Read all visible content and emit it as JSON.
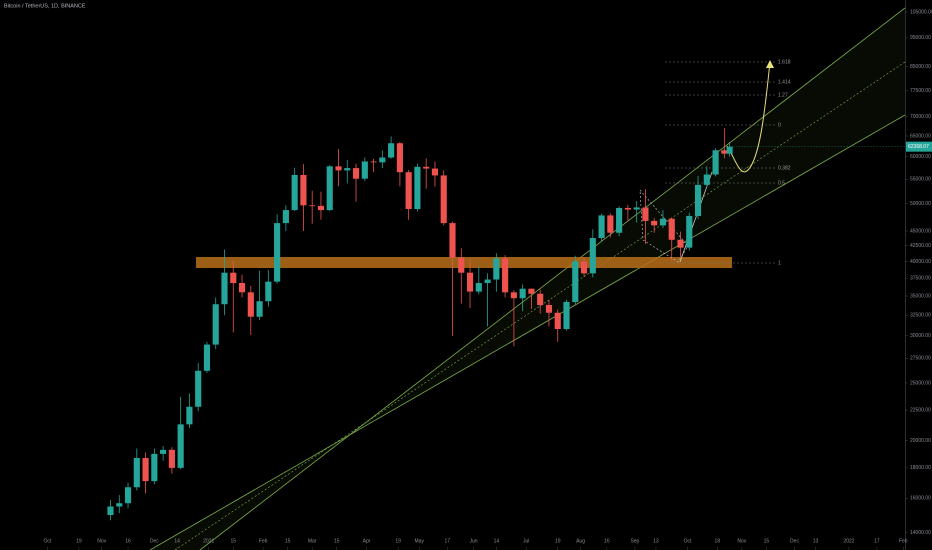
{
  "chart_data": {
    "type": "candlestick",
    "title": "Bitcoin / TetherUS, 1D, BINANCE",
    "log_scale": true,
    "up_color": "#26a69a",
    "down_color": "#ef5350",
    "xlim": [
      -27,
      489
    ],
    "ylim": [
      13100,
      110000
    ],
    "xticks": [
      {
        "value": 0,
        "label": "Oct"
      },
      {
        "value": 18,
        "label": "19"
      },
      {
        "value": 31,
        "label": "Nov"
      },
      {
        "value": 46,
        "label": "16"
      },
      {
        "value": 61,
        "label": "Dec"
      },
      {
        "value": 74,
        "label": "14"
      },
      {
        "value": 92,
        "label": "2021"
      },
      {
        "value": 106,
        "label": "15"
      },
      {
        "value": 123,
        "label": "Feb"
      },
      {
        "value": 137,
        "label": "15"
      },
      {
        "value": 151,
        "label": "Mar"
      },
      {
        "value": 165,
        "label": "15"
      },
      {
        "value": 182,
        "label": "Apr"
      },
      {
        "value": 200,
        "label": "19"
      },
      {
        "value": 212,
        "label": "May"
      },
      {
        "value": 228,
        "label": "17"
      },
      {
        "value": 243,
        "label": "Jun"
      },
      {
        "value": 256,
        "label": "14"
      },
      {
        "value": 273,
        "label": "Jul"
      },
      {
        "value": 291,
        "label": "19"
      },
      {
        "value": 304,
        "label": "Aug"
      },
      {
        "value": 319,
        "label": "16"
      },
      {
        "value": 335,
        "label": "Sep"
      },
      {
        "value": 347,
        "label": "13"
      },
      {
        "value": 365,
        "label": "Oct"
      },
      {
        "value": 382,
        "label": "18"
      },
      {
        "value": 396,
        "label": "Nov"
      },
      {
        "value": 410,
        "label": "15"
      },
      {
        "value": 426,
        "label": "Dec"
      },
      {
        "value": 438,
        "label": "13"
      },
      {
        "value": 457,
        "label": "2022"
      },
      {
        "value": 473,
        "label": "17"
      },
      {
        "value": 488,
        "label": "Feb"
      }
    ],
    "yticks": [
      {
        "value": 14000,
        "label": "14000.00"
      },
      {
        "value": 16000,
        "label": "16000.00"
      },
      {
        "value": 18000,
        "label": "18000.00"
      },
      {
        "value": 20000,
        "label": "20000.00"
      },
      {
        "value": 22500,
        "label": "22500.00"
      },
      {
        "value": 25000,
        "label": "25000.00"
      },
      {
        "value": 27500,
        "label": "27500.00"
      },
      {
        "value": 30000,
        "label": "30000.00"
      },
      {
        "value": 32500,
        "label": "32500.00"
      },
      {
        "value": 35000,
        "label": "35000.00"
      },
      {
        "value": 37500,
        "label": "37500.00"
      },
      {
        "value": 40000,
        "label": "40000.00"
      },
      {
        "value": 42500,
        "label": "42500.00"
      },
      {
        "value": 45000,
        "label": "45000.00"
      },
      {
        "value": 50000,
        "label": "50000.00"
      },
      {
        "value": 55000,
        "label": "55000.00"
      },
      {
        "value": 60000,
        "label": "60000.00"
      },
      {
        "value": 65000,
        "label": "65000.00"
      },
      {
        "value": 70000,
        "label": "70000.00"
      },
      {
        "value": 77500,
        "label": "77500.00"
      },
      {
        "value": 85000,
        "label": "85000.00"
      },
      {
        "value": 95000,
        "label": "95000.00"
      },
      {
        "value": 105000,
        "label": "105000.00"
      }
    ],
    "x": [
      36,
      41,
      46,
      51,
      56,
      61,
      66,
      71,
      76,
      81,
      86,
      91,
      96,
      101,
      106,
      111,
      116,
      121,
      126,
      131,
      136,
      141,
      146,
      151,
      156,
      161,
      166,
      171,
      176,
      181,
      186,
      191,
      196,
      201,
      206,
      211,
      216,
      221,
      226,
      231,
      236,
      241,
      246,
      251,
      256,
      261,
      266,
      271,
      276,
      281,
      286,
      291,
      296,
      301,
      306,
      311,
      316,
      321,
      326,
      331,
      336,
      341,
      346,
      351,
      356,
      361,
      366,
      371,
      376,
      381,
      386,
      389
    ],
    "open": [
      15000,
      15500,
      15700,
      16700,
      18700,
      17100,
      19000,
      19300,
      18000,
      21300,
      22800,
      26200,
      29000,
      33900,
      38300,
      36800,
      35500,
      32300,
      34300,
      37000,
      46400,
      48800,
      55900,
      49700,
      49600,
      48800,
      57800,
      56900,
      57400,
      55100,
      58900,
      58700,
      59800,
      63200,
      56500,
      49000,
      57700,
      57300,
      55800,
      46400,
      40600,
      38300,
      35600,
      36800,
      37300,
      40500,
      35500,
      34700,
      36000,
      35300,
      33800,
      32800,
      30800,
      34200,
      40000,
      38200,
      43800,
      47800,
      44700,
      49200,
      48900,
      49300,
      46800,
      46000,
      47200,
      43500,
      42200,
      47700,
      53800,
      56000,
      61500,
      60700
    ],
    "high": [
      15900,
      16200,
      17000,
      19400,
      19100,
      19400,
      19600,
      19500,
      23700,
      24000,
      27000,
      29300,
      34800,
      41900,
      40100,
      38000,
      36400,
      38600,
      38700,
      48000,
      49700,
      57500,
      58300,
      52600,
      52400,
      58100,
      61800,
      59200,
      58400,
      59800,
      59500,
      61500,
      64900,
      63500,
      57000,
      58400,
      59600,
      58900,
      56900,
      46700,
      42100,
      40400,
      39300,
      38200,
      41300,
      41000,
      35800,
      36600,
      36000,
      35900,
      34500,
      33200,
      34500,
      40900,
      40600,
      45300,
      48100,
      48200,
      49500,
      49800,
      50500,
      52900,
      47300,
      48800,
      47400,
      44900,
      48300,
      55700,
      57800,
      62000,
      67000,
      63500
    ],
    "low": [
      14700,
      15100,
      15400,
      16500,
      16300,
      16900,
      18500,
      17600,
      17900,
      21000,
      22400,
      26000,
      28500,
      32500,
      30400,
      34800,
      30100,
      31900,
      33600,
      36700,
      45000,
      48600,
      45000,
      46300,
      47000,
      48600,
      53500,
      54100,
      50400,
      54600,
      56500,
      57400,
      59500,
      53500,
      47000,
      48500,
      53000,
      53400,
      46000,
      30000,
      34000,
      33400,
      35200,
      31100,
      35600,
      34800,
      28800,
      33000,
      33300,
      32700,
      31100,
      29300,
      30600,
      33900,
      37700,
      37600,
      43200,
      43900,
      44100,
      46700,
      46500,
      42800,
      44700,
      45500,
      40100,
      40700,
      41700,
      47100,
      53200,
      55600,
      59600,
      60000
    ],
    "close": [
      15500,
      15700,
      16700,
      18700,
      17100,
      19000,
      19300,
      18000,
      21300,
      22800,
      26200,
      29000,
      33900,
      38300,
      36800,
      35500,
      32300,
      34300,
      37000,
      46400,
      48800,
      55900,
      49700,
      49600,
      48800,
      57800,
      56900,
      57400,
      55100,
      58900,
      58700,
      59800,
      63200,
      56500,
      49000,
      57700,
      57300,
      55800,
      46400,
      40600,
      38300,
      35600,
      36800,
      37300,
      40500,
      35500,
      34700,
      36000,
      35300,
      33800,
      32800,
      30800,
      34200,
      40000,
      38200,
      43800,
      47800,
      44700,
      49200,
      48900,
      49300,
      46800,
      46000,
      47200,
      43500,
      42200,
      47700,
      53800,
      56000,
      61500,
      60700,
      62368.07
    ],
    "fib_labels": [
      "1.618",
      "1.414",
      "1.27",
      "0",
      "0.382",
      "0.5",
      "1"
    ]
  }
}
